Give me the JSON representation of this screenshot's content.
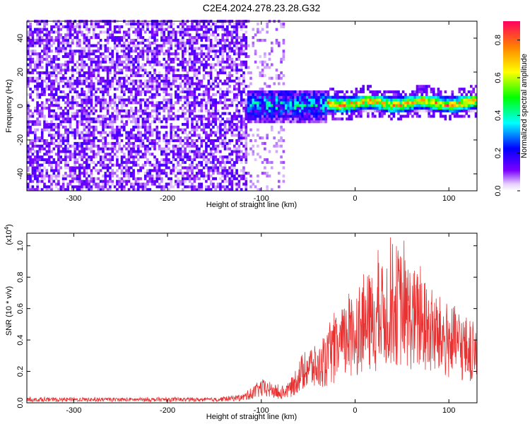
{
  "title": "C2E4.2024.278.23.28.G32",
  "colors": {
    "snr_line": "#e83232",
    "spec_background": "#ffffff",
    "spec_noise": "#6a1ee8",
    "spec_faint": "#d8c4f4"
  },
  "chart_data": [
    {
      "type": "heatmap",
      "xlabel": "Height of straight line (km)",
      "ylabel": "Frequency (Hz)",
      "xlim": [
        -350,
        130
      ],
      "ylim": [
        -50,
        50
      ],
      "xticks": [
        -300,
        -200,
        -100,
        0,
        100
      ],
      "yticks": [
        -40,
        -20,
        0,
        20,
        40
      ],
      "colorbar": {
        "label": "Normalized spectral amplitude",
        "range": [
          0.0,
          0.9
        ],
        "ticks": [
          0.0,
          0.2,
          0.4,
          0.6,
          0.8
        ],
        "colormap": "rainbow (purple-blue-cyan-green-yellow-red)"
      },
      "features": [
        {
          "region_km": [
            -350,
            -115
          ],
          "description_value": "broadband low-amplitude noise",
          "amplitude": 0.12
        },
        {
          "region_km": [
            -115,
            -30
          ],
          "center_hz": 0,
          "band_hz": [
            -10,
            8
          ],
          "amplitude": 0.4
        },
        {
          "region_km": [
            -30,
            130
          ],
          "center_hz": 1,
          "band_hz": [
            -4,
            5
          ],
          "amplitude": 0.75
        }
      ]
    },
    {
      "type": "line",
      "xlabel": "Height of straight line (km)",
      "ylabel": "SNR (10 * v/v)",
      "yscale_label": "(x10",
      "yscale_exp": "4",
      "xlim": [
        -350,
        130
      ],
      "ylim": [
        0,
        1.08
      ],
      "xticks": [
        -300,
        -200,
        -100,
        0,
        100
      ],
      "yticks": [
        0.0,
        0.2,
        0.4,
        0.6,
        0.8,
        1.0
      ],
      "series": [
        {
          "envelope": {
            "x": [
              -350,
              -300,
              -250,
              -200,
              -150,
              -120,
              -110,
              -100,
              -90,
              -80,
              -70,
              -60,
              -50,
              -40,
              -30,
              -20,
              -10,
              0,
              10,
              20,
              30,
              40,
              50,
              60,
              70,
              80,
              90,
              100,
              110,
              120,
              130
            ],
            "y": [
              0.03,
              0.03,
              0.03,
              0.03,
              0.03,
              0.05,
              0.09,
              0.14,
              0.12,
              0.09,
              0.12,
              0.25,
              0.35,
              0.32,
              0.4,
              0.5,
              0.58,
              0.68,
              0.75,
              0.75,
              0.82,
              0.95,
              0.88,
              0.8,
              0.75,
              0.68,
              0.62,
              0.58,
              0.55,
              0.5,
              0.45
            ]
          }
        }
      ]
    }
  ]
}
